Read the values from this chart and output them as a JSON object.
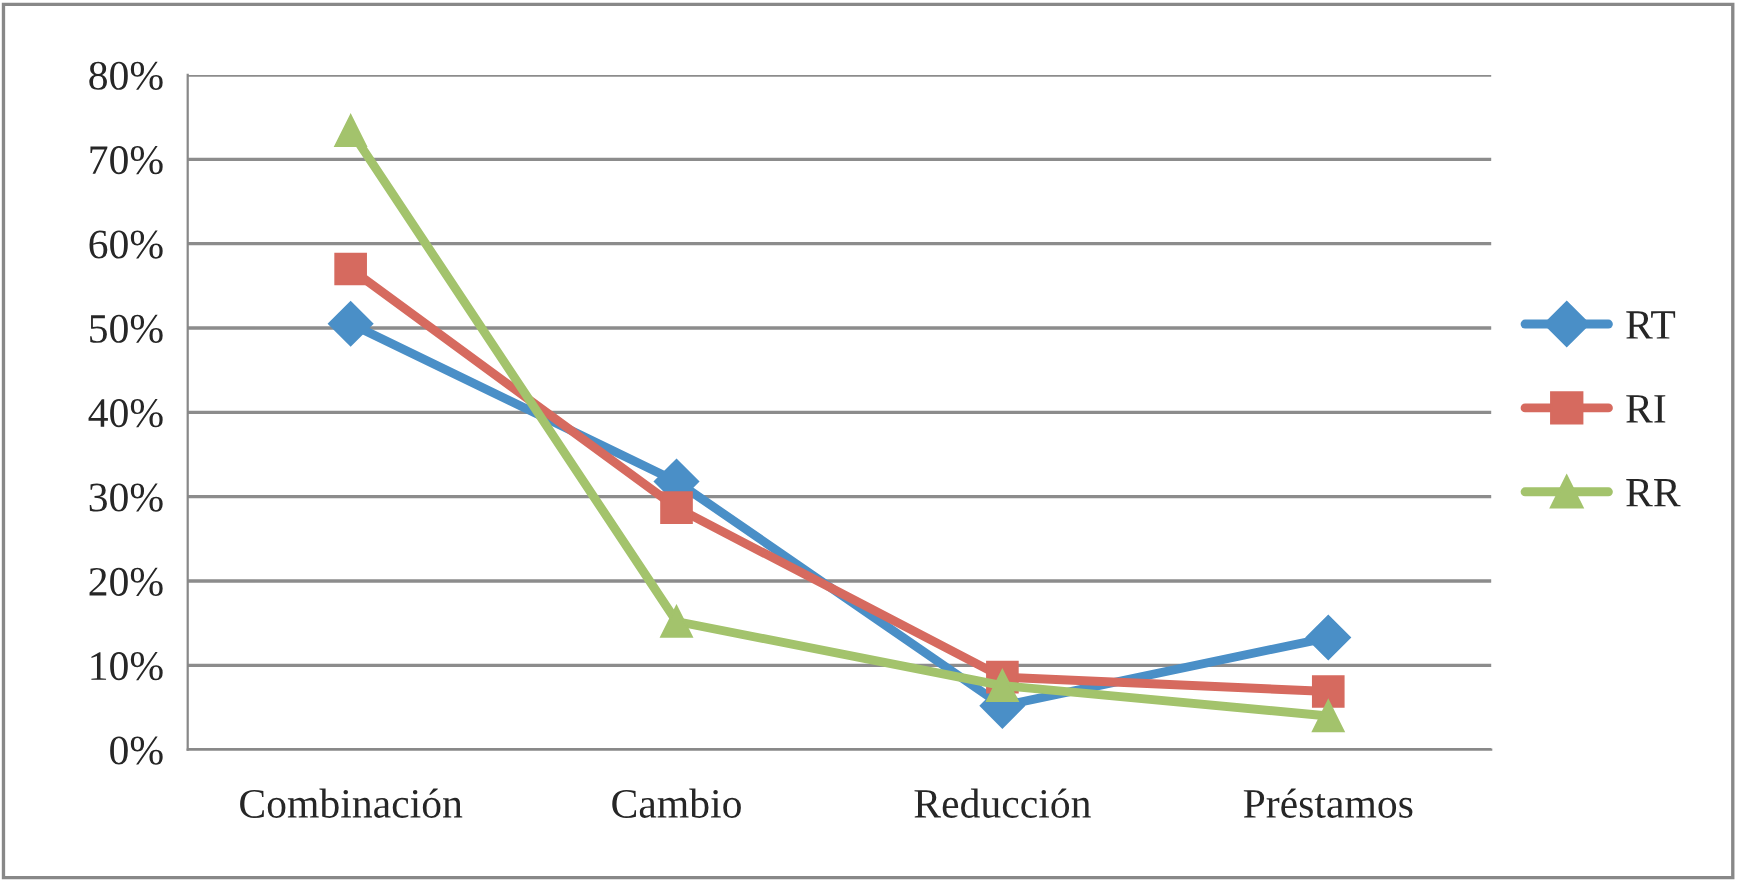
{
  "chart_data": {
    "type": "line",
    "categories": [
      "Combinación",
      "Cambio",
      "Reducción",
      "Préstamos"
    ],
    "series": [
      {
        "name": "RT",
        "color": "#4a8fc7",
        "marker": "diamond",
        "values": [
          50.5,
          31.8,
          5.2,
          13.3
        ]
      },
      {
        "name": "RI",
        "color": "#d66a5f",
        "marker": "square",
        "values": [
          57.0,
          28.7,
          8.6,
          6.9
        ]
      },
      {
        "name": "RR",
        "color": "#a3c36c",
        "marker": "triangle",
        "values": [
          73.4,
          15.2,
          7.6,
          4.0
        ]
      }
    ],
    "ylim": [
      0,
      80
    ],
    "yticks": [
      {
        "value": 0,
        "label": "0%"
      },
      {
        "value": 10,
        "label": "10%"
      },
      {
        "value": 20,
        "label": "20%"
      },
      {
        "value": 30,
        "label": "30%"
      },
      {
        "value": 40,
        "label": "40%"
      },
      {
        "value": 50,
        "label": "50%"
      },
      {
        "value": 60,
        "label": "60%"
      },
      {
        "value": 70,
        "label": "70%"
      },
      {
        "value": 80,
        "label": "80%"
      }
    ],
    "grid": "y",
    "legend": "right",
    "line_style": "solid"
  }
}
